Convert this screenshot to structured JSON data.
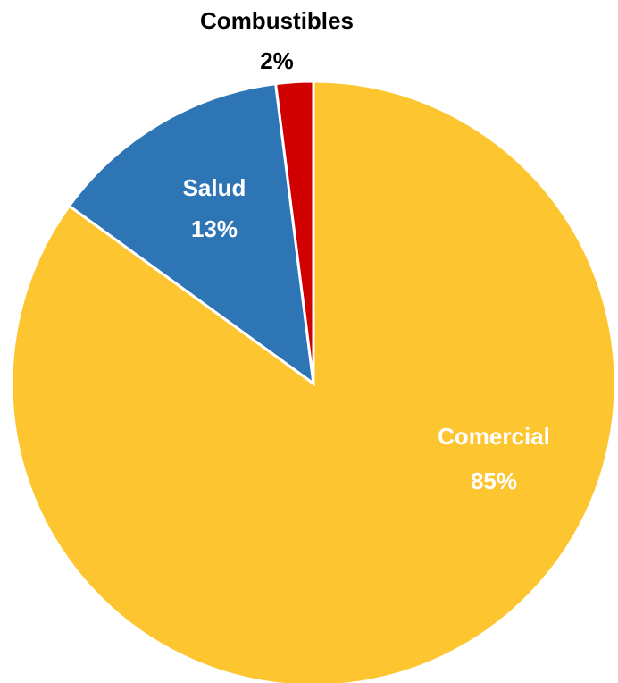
{
  "chart_data": {
    "type": "pie",
    "categories": [
      "Comercial",
      "Salud",
      "Combustibles"
    ],
    "values": [
      85,
      13,
      2
    ],
    "value_labels": [
      "85%",
      "13%",
      "2%"
    ],
    "colors": [
      "#FDC530",
      "#2E75B6",
      "#D00000"
    ]
  }
}
